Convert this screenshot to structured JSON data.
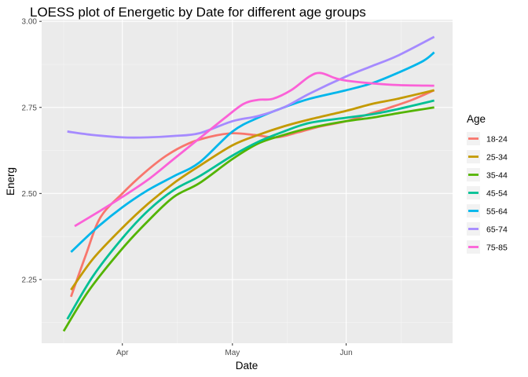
{
  "chart_data": {
    "type": "line",
    "title": "LOESS plot of Energetic by Date for different age groups",
    "xlabel": "Date",
    "ylabel": "Energ",
    "x_range": [
      "2021-03-10",
      "2021-06-30"
    ],
    "ylim": [
      2.065,
      3.005
    ],
    "x_ticks": [
      {
        "date": "2021-04-01",
        "label": "Apr"
      },
      {
        "date": "2021-05-01",
        "label": "May"
      },
      {
        "date": "2021-06-01",
        "label": "Jun"
      }
    ],
    "x_minor_ticks": [
      "2021-03-16",
      "2021-04-16",
      "2021-05-16",
      "2021-06-16"
    ],
    "y_ticks": [
      2.25,
      2.5,
      2.75,
      3.0
    ],
    "y_tick_labels": [
      "2.25",
      "2.50",
      "2.75",
      "3.00"
    ],
    "y_minor_ticks": [
      2.125,
      2.375,
      2.625,
      2.875
    ],
    "grid": true,
    "legend": {
      "title": "Age",
      "position": "right"
    },
    "series": [
      {
        "name": "18-24",
        "color": "#F8766D",
        "points": [
          [
            "2021-03-18",
            2.2
          ],
          [
            "2021-03-22",
            2.32
          ],
          [
            "2021-03-26",
            2.43
          ],
          [
            "2021-04-01",
            2.5
          ],
          [
            "2021-04-07",
            2.56
          ],
          [
            "2021-04-13",
            2.61
          ],
          [
            "2021-04-19",
            2.645
          ],
          [
            "2021-04-25",
            2.665
          ],
          [
            "2021-05-01",
            2.675
          ],
          [
            "2021-05-07",
            2.67
          ],
          [
            "2021-05-13",
            2.663
          ],
          [
            "2021-05-19",
            2.678
          ],
          [
            "2021-05-25",
            2.695
          ],
          [
            "2021-06-01",
            2.71
          ],
          [
            "2021-06-07",
            2.73
          ],
          [
            "2021-06-13",
            2.75
          ],
          [
            "2021-06-19",
            2.772
          ],
          [
            "2021-06-25",
            2.8
          ]
        ]
      },
      {
        "name": "25-34",
        "color": "#C49A00",
        "points": [
          [
            "2021-03-18",
            2.22
          ],
          [
            "2021-03-24",
            2.31
          ],
          [
            "2021-04-01",
            2.4
          ],
          [
            "2021-04-08",
            2.47
          ],
          [
            "2021-04-15",
            2.53
          ],
          [
            "2021-04-22",
            2.58
          ],
          [
            "2021-05-01",
            2.64
          ],
          [
            "2021-05-08",
            2.67
          ],
          [
            "2021-05-15",
            2.695
          ],
          [
            "2021-05-22",
            2.715
          ],
          [
            "2021-06-01",
            2.74
          ],
          [
            "2021-06-08",
            2.76
          ],
          [
            "2021-06-15",
            2.775
          ],
          [
            "2021-06-25",
            2.8
          ]
        ]
      },
      {
        "name": "35-44",
        "color": "#53B400",
        "points": [
          [
            "2021-03-16",
            2.1
          ],
          [
            "2021-03-23",
            2.22
          ],
          [
            "2021-04-01",
            2.34
          ],
          [
            "2021-04-08",
            2.42
          ],
          [
            "2021-04-15",
            2.49
          ],
          [
            "2021-04-22",
            2.53
          ],
          [
            "2021-05-01",
            2.6
          ],
          [
            "2021-05-08",
            2.645
          ],
          [
            "2021-05-15",
            2.67
          ],
          [
            "2021-05-22",
            2.69
          ],
          [
            "2021-06-01",
            2.71
          ],
          [
            "2021-06-08",
            2.72
          ],
          [
            "2021-06-15",
            2.733
          ],
          [
            "2021-06-25",
            2.75
          ]
        ]
      },
      {
        "name": "45-54",
        "color": "#00C094",
        "points": [
          [
            "2021-03-17",
            2.135
          ],
          [
            "2021-03-24",
            2.26
          ],
          [
            "2021-04-01",
            2.37
          ],
          [
            "2021-04-08",
            2.45
          ],
          [
            "2021-04-15",
            2.51
          ],
          [
            "2021-04-22",
            2.55
          ],
          [
            "2021-05-01",
            2.61
          ],
          [
            "2021-05-08",
            2.65
          ],
          [
            "2021-05-15",
            2.68
          ],
          [
            "2021-05-22",
            2.705
          ],
          [
            "2021-06-01",
            2.72
          ],
          [
            "2021-06-08",
            2.73
          ],
          [
            "2021-06-15",
            2.745
          ],
          [
            "2021-06-25",
            2.77
          ]
        ]
      },
      {
        "name": "55-64",
        "color": "#00B6EB",
        "points": [
          [
            "2021-03-18",
            2.33
          ],
          [
            "2021-03-25",
            2.4
          ],
          [
            "2021-04-01",
            2.46
          ],
          [
            "2021-04-08",
            2.51
          ],
          [
            "2021-04-15",
            2.55
          ],
          [
            "2021-04-22",
            2.59
          ],
          [
            "2021-05-01",
            2.68
          ],
          [
            "2021-05-08",
            2.72
          ],
          [
            "2021-05-15",
            2.75
          ],
          [
            "2021-05-22",
            2.775
          ],
          [
            "2021-06-01",
            2.8
          ],
          [
            "2021-06-08",
            2.82
          ],
          [
            "2021-06-15",
            2.85
          ],
          [
            "2021-06-22",
            2.885
          ],
          [
            "2021-06-25",
            2.91
          ]
        ]
      },
      {
        "name": "65-74",
        "color": "#A58AFF",
        "points": [
          [
            "2021-03-17",
            2.68
          ],
          [
            "2021-03-24",
            2.67
          ],
          [
            "2021-04-01",
            2.663
          ],
          [
            "2021-04-08",
            2.663
          ],
          [
            "2021-04-15",
            2.667
          ],
          [
            "2021-04-22",
            2.675
          ],
          [
            "2021-05-01",
            2.71
          ],
          [
            "2021-05-08",
            2.725
          ],
          [
            "2021-05-15",
            2.75
          ],
          [
            "2021-05-22",
            2.79
          ],
          [
            "2021-06-01",
            2.84
          ],
          [
            "2021-06-08",
            2.87
          ],
          [
            "2021-06-15",
            2.9
          ],
          [
            "2021-06-25",
            2.955
          ]
        ]
      },
      {
        "name": "75-85",
        "color": "#FB61D7",
        "points": [
          [
            "2021-03-19",
            2.405
          ],
          [
            "2021-03-26",
            2.45
          ],
          [
            "2021-04-01",
            2.49
          ],
          [
            "2021-04-08",
            2.54
          ],
          [
            "2021-04-15",
            2.6
          ],
          [
            "2021-04-22",
            2.66
          ],
          [
            "2021-04-29",
            2.72
          ],
          [
            "2021-05-04",
            2.76
          ],
          [
            "2021-05-08",
            2.772
          ],
          [
            "2021-05-12",
            2.775
          ],
          [
            "2021-05-17",
            2.8
          ],
          [
            "2021-05-22",
            2.84
          ],
          [
            "2021-05-25",
            2.85
          ],
          [
            "2021-05-29",
            2.835
          ],
          [
            "2021-06-01",
            2.828
          ],
          [
            "2021-06-08",
            2.82
          ],
          [
            "2021-06-15",
            2.815
          ],
          [
            "2021-06-25",
            2.813
          ]
        ]
      }
    ]
  }
}
